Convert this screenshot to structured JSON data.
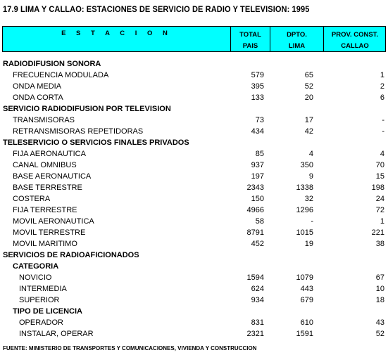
{
  "title": "17.9 LIMA Y CALLAO: ESTACIONES DE SERVICIO DE RADIO Y TELEVISION: 1995",
  "header": {
    "estacion": "E S T A C I O N",
    "total_l1": "TOTAL",
    "total_l2": "PAIS",
    "dpto_l1": "DPTO.",
    "dpto_l2": "LIMA",
    "prov_l1": "PROV. CONST.",
    "prov_l2": "CALLAO"
  },
  "rows": [
    {
      "kind": "sec",
      "label": "RADIODIFUSION SONORA"
    },
    {
      "kind": "item",
      "label": "FRECUENCIA MODULADA",
      "total": "579",
      "lima": "65",
      "callao": "1"
    },
    {
      "kind": "item",
      "label": "ONDA MEDIA",
      "total": "395",
      "lima": "52",
      "callao": "2"
    },
    {
      "kind": "item",
      "label": "ONDA CORTA",
      "total": "133",
      "lima": "20",
      "callao": "6"
    },
    {
      "kind": "sec",
      "label": "SERVICIO RADIODIFUSION POR TELEVISION"
    },
    {
      "kind": "item",
      "label": "TRANSMISORAS",
      "total": "73",
      "lima": "17",
      "callao": "-"
    },
    {
      "kind": "item",
      "label": "RETRANSMISORAS REPETIDORAS",
      "total": "434",
      "lima": "42",
      "callao": "-"
    },
    {
      "kind": "sec",
      "label": "TELESERVICIO O SERVICIOS FINALES PRIVADOS"
    },
    {
      "kind": "item",
      "label": "FIJA AERONAUTICA",
      "total": "85",
      "lima": "4",
      "callao": "4"
    },
    {
      "kind": "item",
      "label": "CANAL OMNIBUS",
      "total": "937",
      "lima": "350",
      "callao": "70"
    },
    {
      "kind": "item",
      "label": "BASE AERONAUTICA",
      "total": "197",
      "lima": "9",
      "callao": "15"
    },
    {
      "kind": "item",
      "label": "BASE TERRESTRE",
      "total": "2343",
      "lima": "1338",
      "callao": "198"
    },
    {
      "kind": "item",
      "label": "COSTERA",
      "total": "150",
      "lima": "32",
      "callao": "24"
    },
    {
      "kind": "item",
      "label": "FIJA TERRESTRE",
      "total": "4966",
      "lima": "1296",
      "callao": "72"
    },
    {
      "kind": "item",
      "label": "MOVIL AERONAUTICA",
      "total": "58",
      "lima": "-",
      "callao": "1"
    },
    {
      "kind": "item",
      "label": "MOVIL TERRESTRE",
      "total": "8791",
      "lima": "1015",
      "callao": "221"
    },
    {
      "kind": "item",
      "label": "MOVIL MARITIMO",
      "total": "452",
      "lima": "19",
      "callao": "38"
    },
    {
      "kind": "sec",
      "label": "SERVICIOS DE RADIOAFICIONADOS"
    },
    {
      "kind": "sub",
      "label": "CATEGORIA"
    },
    {
      "kind": "item2",
      "label": "NOVICIO",
      "total": "1594",
      "lima": "1079",
      "callao": "67"
    },
    {
      "kind": "item2",
      "label": "INTERMEDIA",
      "total": "624",
      "lima": "443",
      "callao": "10"
    },
    {
      "kind": "item2",
      "label": "SUPERIOR",
      "total": "934",
      "lima": "679",
      "callao": "18"
    },
    {
      "kind": "sub",
      "label": "TIPO DE LICENCIA"
    },
    {
      "kind": "item2",
      "label": "OPERADOR",
      "total": "831",
      "lima": "610",
      "callao": "43"
    },
    {
      "kind": "item2",
      "label": "INSTALAR, OPERAR",
      "total": "2321",
      "lima": "1591",
      "callao": "52"
    }
  ],
  "source": "FUENTE: MINISTERIO DE TRANSPORTES Y COMUNICACIONES, VIVIENDA Y CONSTRUCCION",
  "colors": {
    "header_bg": "#00ffff"
  }
}
